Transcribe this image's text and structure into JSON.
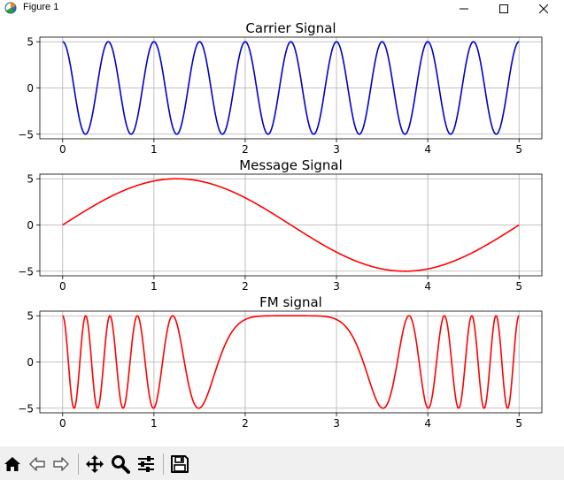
{
  "window": {
    "title": "Figure 1",
    "icon": "matplotlib-figure-icon",
    "controls": [
      "minimize-icon",
      "maximize-icon",
      "close-icon"
    ]
  },
  "toolbar": {
    "buttons": [
      "home-icon",
      "back-arrow-icon",
      "forward-arrow-icon",
      "pan-icon",
      "zoom-icon",
      "configure-subplots-icon",
      "save-icon"
    ]
  },
  "colors": {
    "carrier": "#0000cd",
    "message": "#ff0000",
    "fm": "#ff0000",
    "grid": "#b0b0b0",
    "toolbar_bg": "#f0f0f0"
  },
  "chart_data": [
    {
      "type": "line",
      "title": "Carrier Signal",
      "xlabel": "",
      "ylabel": "",
      "xlim": [
        -0.25,
        5.25
      ],
      "ylim": [
        -5.5,
        5.5
      ],
      "xticks": [
        0,
        1,
        2,
        3,
        4,
        5
      ],
      "yticks": [
        -5,
        0,
        5
      ],
      "grid": true,
      "series": [
        {
          "color": "#0000cd",
          "function": "5*cos(2*pi*2*t)",
          "t_range": [
            0,
            5
          ],
          "frequency": 2,
          "amplitude": 5
        }
      ]
    },
    {
      "type": "line",
      "title": "Message Signal",
      "xlabel": "",
      "ylabel": "",
      "xlim": [
        -0.25,
        5.25
      ],
      "ylim": [
        -5.5,
        5.5
      ],
      "xticks": [
        0,
        1,
        2,
        3,
        4,
        5
      ],
      "yticks": [
        -5,
        0,
        5
      ],
      "grid": true,
      "series": [
        {
          "color": "#ff0000",
          "function": "5*sin(2*pi*0.2*t)",
          "t_range": [
            0,
            5
          ],
          "frequency": 0.2,
          "amplitude": 5
        }
      ]
    },
    {
      "type": "line",
      "title": "FM signal",
      "xlabel": "",
      "ylabel": "",
      "xlim": [
        -0.25,
        5.25
      ],
      "ylim": [
        -5.5,
        5.5
      ],
      "xticks": [
        0,
        1,
        2,
        3,
        4,
        5
      ],
      "yticks": [
        -5,
        0,
        5
      ],
      "grid": true,
      "series": [
        {
          "color": "#ff0000",
          "function": "5*cos(2*pi*2*t + 10*sin(2*pi*0.2*t))",
          "t_range": [
            0,
            5
          ],
          "amplitude": 5,
          "carrier_frequency": 2,
          "modulation_index": 10,
          "message_frequency": 0.2
        }
      ]
    }
  ]
}
